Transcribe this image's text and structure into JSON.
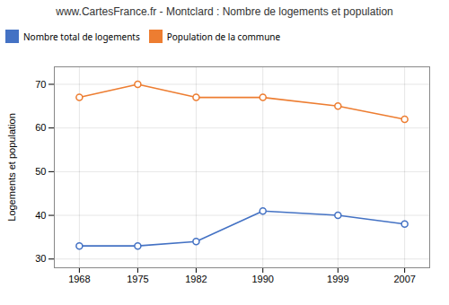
{
  "chart_data": {
    "type": "line",
    "title": "www.CartesFrance.fr - Montclard : Nombre de logements et population",
    "ylabel": "Logements et population",
    "x": [
      1968,
      1975,
      1982,
      1990,
      1999,
      2007
    ],
    "series": [
      {
        "name": "Nombre total de logements",
        "color": "#4472c4",
        "values": [
          33,
          33,
          34,
          41,
          40,
          38
        ]
      },
      {
        "name": "Population de la commune",
        "color": "#ed7d31",
        "values": [
          67,
          70,
          67,
          67,
          65,
          62
        ]
      }
    ],
    "xlim": [
      1965,
      2010
    ],
    "xticks": [
      1968,
      1975,
      1982,
      1990,
      1999,
      2007
    ],
    "ylim": [
      28,
      74
    ],
    "yticks": [
      30,
      40,
      50,
      60,
      70
    ],
    "grid": true,
    "legend": "top",
    "marker": "circle"
  }
}
